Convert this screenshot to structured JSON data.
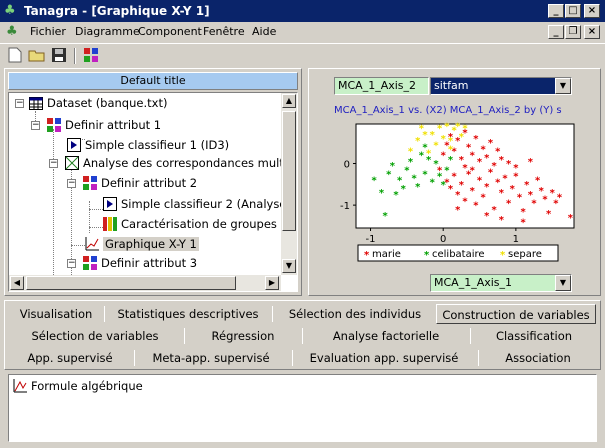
{
  "window": {
    "title": "Tanagra - [Graphique X-Y 1]",
    "app_icon": "palm-tree-icon",
    "controls": {
      "minimize": "_",
      "maximize": "□",
      "close": "×",
      "restore": "❐"
    }
  },
  "menu": {
    "items": [
      "Fichier",
      "Diagramme",
      "Component",
      "Fenêtre",
      "Aide"
    ]
  },
  "toolbar": {
    "icons": [
      "new-file-icon",
      "open-folder-icon",
      "save-icon",
      "execute-icon"
    ]
  },
  "tree": {
    "header": "Default title",
    "items": [
      {
        "label": "Dataset (banque.txt)",
        "icon": "table-icon"
      },
      {
        "label": "Definir attribut 1",
        "icon": "define-attribute-icon"
      },
      {
        "label": "Simple classifieur 1 (ID3)",
        "icon": "classifier-icon"
      },
      {
        "label": "Analyse des correspondances mult",
        "icon": "correspondence-analysis-icon"
      },
      {
        "label": "Definir attribut 2",
        "icon": "define-attribute-icon"
      },
      {
        "label": "Simple classifieur 2 (Analyse",
        "icon": "classifier-icon"
      },
      {
        "label": "Caractérisation de groupes",
        "icon": "characterization-icon"
      },
      {
        "label": "Graphique X-Y 1",
        "icon": "scatter-plot-icon"
      },
      {
        "label": "Definir attribut 3",
        "icon": "define-attribute-icon"
      }
    ]
  },
  "plot_panel": {
    "y_axis_select": "MCA_1_Axis_2",
    "color_select": "sitfam",
    "x_axis_select": "MCA_1_Axis_1"
  },
  "chart_data": {
    "type": "scatter",
    "title": "MCA_1_Axis_1 vs. (X2) MCA_1_Axis_2 by (Y) s",
    "xlim": [
      -1.2,
      1.8
    ],
    "ylim": [
      -1.55,
      0.95
    ],
    "x_ticks": [
      "-1",
      "0",
      "1"
    ],
    "y_ticks": [
      "0",
      "-1"
    ],
    "grid": false,
    "legend": "bottom",
    "series": [
      {
        "name": "marie",
        "color": "#e00000",
        "points": [
          [
            0.05,
            -0.45
          ],
          [
            0.1,
            -0.6
          ],
          [
            0.15,
            -0.3
          ],
          [
            0.2,
            -0.75
          ],
          [
            0.25,
            -0.5
          ],
          [
            0.3,
            -0.9
          ],
          [
            0.35,
            -0.25
          ],
          [
            0.4,
            -0.65
          ],
          [
            0.45,
            -1.0
          ],
          [
            0.5,
            -0.4
          ],
          [
            0.55,
            -0.8
          ],
          [
            0.6,
            -0.55
          ],
          [
            0.65,
            -0.2
          ],
          [
            0.7,
            -1.1
          ],
          [
            0.75,
            -0.45
          ],
          [
            0.8,
            -0.7
          ],
          [
            0.85,
            -0.35
          ],
          [
            0.9,
            -0.95
          ],
          [
            0.95,
            -0.6
          ],
          [
            1.0,
            -0.3
          ],
          [
            1.05,
            -0.8
          ],
          [
            1.1,
            -1.15
          ],
          [
            1.15,
            -0.5
          ],
          [
            1.2,
            -0.75
          ],
          [
            1.25,
            -0.95
          ],
          [
            1.3,
            -0.4
          ],
          [
            1.35,
            -0.65
          ],
          [
            1.4,
            -0.85
          ],
          [
            1.5,
            -0.7
          ],
          [
            1.55,
            -0.95
          ],
          [
            1.6,
            -0.8
          ],
          [
            1.75,
            -1.3
          ],
          [
            0.0,
            0.2
          ],
          [
            0.05,
            0.45
          ],
          [
            0.1,
            0.65
          ],
          [
            0.15,
            0.3
          ],
          [
            0.2,
            0.55
          ],
          [
            0.25,
            0.1
          ],
          [
            0.3,
            0.75
          ],
          [
            0.35,
            0.4
          ],
          [
            0.4,
            0.2
          ],
          [
            0.45,
            0.6
          ],
          [
            0.5,
            0.05
          ],
          [
            0.55,
            0.35
          ],
          [
            0.6,
            0.15
          ],
          [
            0.65,
            0.5
          ],
          [
            0.7,
            -0.05
          ],
          [
            0.75,
            0.3
          ],
          [
            0.8,
            0.1
          ],
          [
            0.9,
            0.0
          ],
          [
            1.0,
            -0.1
          ],
          [
            1.2,
            0.05
          ],
          [
            0.3,
            -0.1
          ],
          [
            0.2,
            -1.1
          ],
          [
            0.6,
            -1.25
          ],
          [
            0.8,
            -1.35
          ],
          [
            1.1,
            -1.4
          ],
          [
            1.45,
            -1.2
          ],
          [
            -0.05,
            -0.15
          ],
          [
            0.4,
            -0.15
          ]
        ]
      },
      {
        "name": "celibataire",
        "color": "#00a000",
        "points": [
          [
            -0.95,
            -0.4
          ],
          [
            -0.85,
            -0.7
          ],
          [
            -0.75,
            -0.25
          ],
          [
            -0.7,
            -0.05
          ],
          [
            -0.6,
            -0.4
          ],
          [
            -0.55,
            -0.6
          ],
          [
            -0.45,
            0.05
          ],
          [
            -0.4,
            -0.35
          ],
          [
            -0.35,
            -0.55
          ],
          [
            -0.3,
            0.2
          ],
          [
            -0.25,
            -0.25
          ],
          [
            -0.15,
            -0.45
          ],
          [
            -0.1,
            0.0
          ],
          [
            -0.05,
            -0.3
          ],
          [
            0.0,
            -0.5
          ],
          [
            0.05,
            -0.15
          ],
          [
            -0.2,
            0.1
          ],
          [
            -0.5,
            -0.15
          ],
          [
            -0.8,
            -1.25
          ],
          [
            -0.65,
            -0.75
          ],
          [
            -0.25,
            0.4
          ],
          [
            0.1,
            0.1
          ]
        ]
      },
      {
        "name": "separe",
        "color": "#f0e000",
        "points": [
          [
            -0.45,
            0.3
          ],
          [
            -0.35,
            0.55
          ],
          [
            -0.3,
            0.85
          ],
          [
            -0.15,
            0.7
          ],
          [
            -0.1,
            0.45
          ],
          [
            -0.05,
            0.85
          ],
          [
            0.0,
            0.6
          ],
          [
            0.05,
            0.9
          ],
          [
            0.1,
            0.55
          ],
          [
            0.15,
            0.8
          ],
          [
            0.2,
            0.9
          ],
          [
            0.25,
            0.65
          ],
          [
            0.3,
            0.85
          ],
          [
            -0.2,
            0.25
          ],
          [
            -0.25,
            0.7
          ],
          [
            0.1,
            0.35
          ]
        ]
      }
    ]
  },
  "tabs": {
    "row1": [
      "Visualisation",
      "Statistiques descriptives",
      "Sélection des individus",
      "Construction de variables"
    ],
    "row2": [
      "Sélection de variables",
      "Régression",
      "Analyse factorielle",
      "Classification"
    ],
    "row3": [
      "App. supervisé",
      "Meta-app. supervisé",
      "Evaluation app. supervisé",
      "Association"
    ],
    "active": "Construction de variables"
  },
  "components": {
    "items": [
      {
        "label": "Formule algébrique",
        "icon": "formula-icon"
      }
    ]
  }
}
